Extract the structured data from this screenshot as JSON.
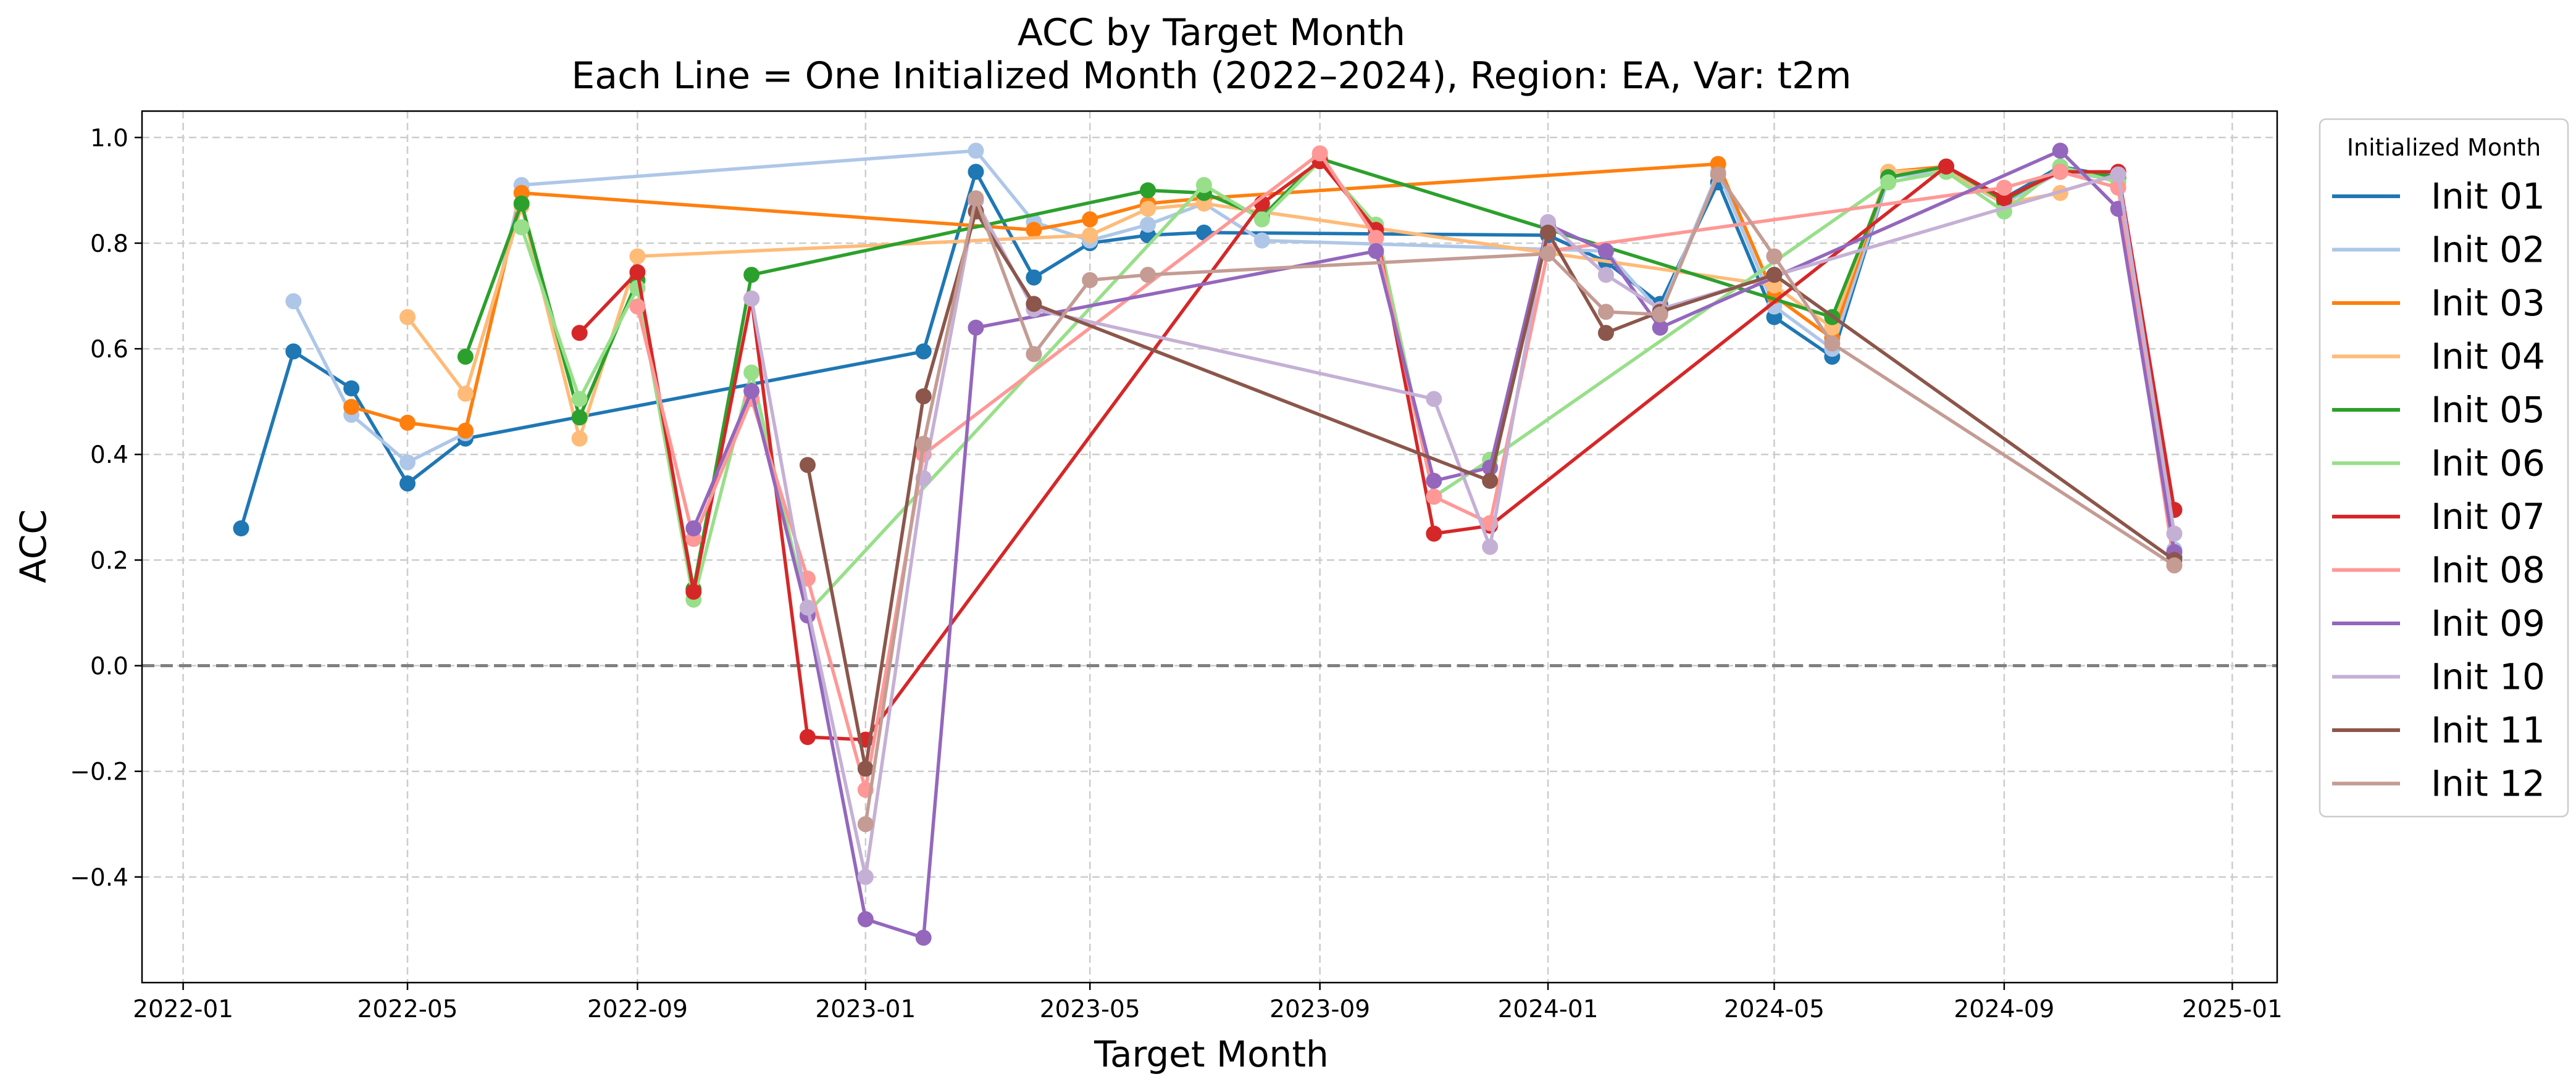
{
  "chart_data": {
    "type": "line",
    "title": "ACC by Target Month",
    "subtitle": "Each Line = One Initialized Month (2022–2024), Region: EA, Var: t2m",
    "xlabel": "Target Month",
    "ylabel": "ACC",
    "xlim": [
      "2021-12-10",
      "2025-01-25"
    ],
    "ylim": [
      -0.6,
      1.05
    ],
    "x_ticks": [
      "2022-01",
      "2022-05",
      "2022-09",
      "2023-01",
      "2023-05",
      "2023-09",
      "2024-01",
      "2024-05",
      "2024-09",
      "2025-01"
    ],
    "y_ticks": [
      -0.4,
      -0.2,
      0.0,
      0.2,
      0.4,
      0.6,
      0.8,
      1.0
    ],
    "y_tick_labels": [
      "−0.4",
      "−0.2",
      "0.0",
      "0.2",
      "0.4",
      "0.6",
      "0.8",
      "1.0"
    ],
    "grid": true,
    "reference_line": 0.0,
    "legend": {
      "title": "Initialized Month",
      "position": "outside-right"
    },
    "series": [
      {
        "name": "Init 01",
        "color": "#1f77b4",
        "points": [
          [
            "2022-02",
            0.26
          ],
          [
            "2022-03",
            0.595
          ],
          [
            "2022-04",
            0.525
          ],
          [
            "2022-05",
            0.345
          ],
          [
            "2022-06",
            0.43
          ],
          [
            "2023-02",
            0.595
          ],
          [
            "2023-03",
            0.935
          ],
          [
            "2023-04",
            0.735
          ],
          [
            "2023-05",
            0.8
          ],
          [
            "2023-06",
            0.815
          ],
          [
            "2023-07",
            0.82
          ],
          [
            "2024-01",
            0.815
          ],
          [
            "2024-02",
            0.765
          ],
          [
            "2024-03",
            0.685
          ],
          [
            "2024-04",
            0.915
          ],
          [
            "2024-05",
            0.66
          ],
          [
            "2024-06",
            0.585
          ],
          [
            "2024-07",
            0.925
          ],
          [
            "2024-08",
            0.945
          ],
          [
            "2024-09",
            0.885
          ],
          [
            "2024-10",
            0.945
          ],
          [
            "2024-11",
            0.925
          ],
          [
            "2024-12",
            0.205
          ]
        ]
      },
      {
        "name": "Init 02",
        "color": "#aec7e8",
        "points": [
          [
            "2022-03",
            0.69
          ],
          [
            "2022-04",
            0.475
          ],
          [
            "2022-05",
            0.385
          ],
          [
            "2022-06",
            0.44
          ],
          [
            "2022-07",
            0.91
          ],
          [
            "2023-03",
            0.975
          ],
          [
            "2023-04",
            0.84
          ],
          [
            "2023-05",
            0.805
          ],
          [
            "2023-06",
            0.835
          ],
          [
            "2023-07",
            0.875
          ],
          [
            "2023-08",
            0.805
          ],
          [
            "2024-02",
            0.785
          ],
          [
            "2024-03",
            0.67
          ],
          [
            "2024-04",
            0.935
          ],
          [
            "2024-05",
            0.68
          ],
          [
            "2024-06",
            0.6
          ],
          [
            "2024-07",
            0.925
          ],
          [
            "2024-08",
            0.935
          ],
          [
            "2024-09",
            0.875
          ],
          [
            "2024-10",
            0.935
          ],
          [
            "2024-11",
            0.92
          ],
          [
            "2024-12",
            0.22
          ]
        ]
      },
      {
        "name": "Init 03",
        "color": "#ff7f0e",
        "points": [
          [
            "2022-04",
            0.49
          ],
          [
            "2022-05",
            0.46
          ],
          [
            "2022-06",
            0.445
          ],
          [
            "2022-07",
            0.895
          ],
          [
            "2023-04",
            0.825
          ],
          [
            "2023-05",
            0.845
          ],
          [
            "2023-06",
            0.875
          ],
          [
            "2023-07",
            0.885
          ],
          [
            "2024-04",
            0.95
          ],
          [
            "2024-05",
            0.7
          ],
          [
            "2024-06",
            0.62
          ],
          [
            "2024-07",
            0.935
          ],
          [
            "2024-08",
            0.945
          ]
        ]
      },
      {
        "name": "Init 04",
        "color": "#ffbb78",
        "points": [
          [
            "2022-05",
            0.66
          ],
          [
            "2022-06",
            0.515
          ],
          [
            "2022-07",
            0.87
          ],
          [
            "2022-08",
            0.43
          ],
          [
            "2022-09",
            0.775
          ],
          [
            "2023-05",
            0.815
          ],
          [
            "2023-06",
            0.865
          ],
          [
            "2023-07",
            0.875
          ],
          [
            "2024-05",
            0.72
          ],
          [
            "2024-06",
            0.64
          ],
          [
            "2024-07",
            0.935
          ],
          [
            "2024-08",
            0.94
          ],
          [
            "2024-09",
            0.875
          ],
          [
            "2024-10",
            0.895
          ]
        ]
      },
      {
        "name": "Init 05",
        "color": "#2ca02c",
        "points": [
          [
            "2022-06",
            0.585
          ],
          [
            "2022-07",
            0.875
          ],
          [
            "2022-08",
            0.47
          ],
          [
            "2022-09",
            0.73
          ],
          [
            "2022-10",
            0.145
          ],
          [
            "2022-11",
            0.74
          ],
          [
            "2023-06",
            0.9
          ],
          [
            "2023-07",
            0.895
          ],
          [
            "2023-08",
            0.85
          ],
          [
            "2023-09",
            0.96
          ],
          [
            "2024-06",
            0.66
          ],
          [
            "2024-07",
            0.925
          ],
          [
            "2024-08",
            0.945
          ],
          [
            "2024-09",
            0.88
          ],
          [
            "2024-10",
            0.94
          ],
          [
            "2024-11",
            0.925
          ]
        ]
      },
      {
        "name": "Init 06",
        "color": "#98df8a",
        "points": [
          [
            "2022-07",
            0.83
          ],
          [
            "2022-08",
            0.505
          ],
          [
            "2022-09",
            0.715
          ],
          [
            "2022-10",
            0.125
          ],
          [
            "2022-11",
            0.555
          ],
          [
            "2022-12",
            0.1
          ],
          [
            "2023-07",
            0.91
          ],
          [
            "2023-08",
            0.845
          ],
          [
            "2023-09",
            0.955
          ],
          [
            "2023-10",
            0.835
          ],
          [
            "2023-11",
            0.32
          ],
          [
            "2023-12",
            0.39
          ],
          [
            "2024-07",
            0.915
          ],
          [
            "2024-08",
            0.935
          ],
          [
            "2024-09",
            0.86
          ],
          [
            "2024-10",
            0.945
          ],
          [
            "2024-11",
            0.915
          ],
          [
            "2024-12",
            0.215
          ]
        ]
      },
      {
        "name": "Init 07",
        "color": "#d62728",
        "points": [
          [
            "2022-08",
            0.63
          ],
          [
            "2022-09",
            0.745
          ],
          [
            "2022-10",
            0.14
          ],
          [
            "2022-11",
            0.695
          ],
          [
            "2022-12",
            -0.135
          ],
          [
            "2023-01",
            -0.14
          ],
          [
            "2023-08",
            0.875
          ],
          [
            "2023-09",
            0.955
          ],
          [
            "2023-10",
            0.825
          ],
          [
            "2023-11",
            0.25
          ],
          [
            "2023-12",
            0.265
          ],
          [
            "2024-08",
            0.945
          ],
          [
            "2024-09",
            0.885
          ],
          [
            "2024-10",
            0.935
          ],
          [
            "2024-11",
            0.935
          ],
          [
            "2024-12",
            0.295
          ]
        ]
      },
      {
        "name": "Init 08",
        "color": "#ff9896",
        "points": [
          [
            "2022-09",
            0.68
          ],
          [
            "2022-10",
            0.24
          ],
          [
            "2022-11",
            0.505
          ],
          [
            "2022-12",
            0.165
          ],
          [
            "2023-01",
            -0.235
          ],
          [
            "2023-02",
            0.4
          ],
          [
            "2023-09",
            0.97
          ],
          [
            "2023-10",
            0.81
          ],
          [
            "2023-11",
            0.32
          ],
          [
            "2023-12",
            0.27
          ],
          [
            "2024-01",
            0.785
          ],
          [
            "2024-09",
            0.905
          ],
          [
            "2024-10",
            0.935
          ],
          [
            "2024-11",
            0.905
          ],
          [
            "2024-12",
            0.19
          ]
        ]
      },
      {
        "name": "Init 09",
        "color": "#9467bd",
        "points": [
          [
            "2022-10",
            0.26
          ],
          [
            "2022-11",
            0.52
          ],
          [
            "2022-12",
            0.095
          ],
          [
            "2023-01",
            -0.48
          ],
          [
            "2023-02",
            -0.515
          ],
          [
            "2023-03",
            0.64
          ],
          [
            "2023-10",
            0.785
          ],
          [
            "2023-11",
            0.35
          ],
          [
            "2023-12",
            0.375
          ],
          [
            "2024-01",
            0.835
          ],
          [
            "2024-02",
            0.785
          ],
          [
            "2024-03",
            0.64
          ],
          [
            "2024-10",
            0.975
          ],
          [
            "2024-11",
            0.865
          ],
          [
            "2024-12",
            0.215
          ]
        ]
      },
      {
        "name": "Init 10",
        "color": "#c5b0d5",
        "points": [
          [
            "2022-11",
            0.695
          ],
          [
            "2022-12",
            0.11
          ],
          [
            "2023-01",
            -0.4
          ],
          [
            "2023-02",
            0.355
          ],
          [
            "2023-03",
            0.88
          ],
          [
            "2023-04",
            0.675
          ],
          [
            "2023-11",
            0.505
          ],
          [
            "2023-12",
            0.225
          ],
          [
            "2024-01",
            0.84
          ],
          [
            "2024-02",
            0.74
          ],
          [
            "2024-03",
            0.675
          ],
          [
            "2024-11",
            0.93
          ],
          [
            "2024-12",
            0.25
          ]
        ]
      },
      {
        "name": "Init 11",
        "color": "#8c564b",
        "points": [
          [
            "2022-12",
            0.38
          ],
          [
            "2023-01",
            -0.195
          ],
          [
            "2023-02",
            0.51
          ],
          [
            "2023-03",
            0.86
          ],
          [
            "2023-04",
            0.685
          ],
          [
            "2023-12",
            0.35
          ],
          [
            "2024-01",
            0.82
          ],
          [
            "2024-02",
            0.63
          ],
          [
            "2024-03",
            0.67
          ],
          [
            "2024-05",
            0.74
          ],
          [
            "2024-12",
            0.2
          ]
        ]
      },
      {
        "name": "Init 12",
        "color": "#c49c94",
        "points": [
          [
            "2023-01",
            -0.3
          ],
          [
            "2023-02",
            0.42
          ],
          [
            "2023-03",
            0.885
          ],
          [
            "2023-04",
            0.59
          ],
          [
            "2023-05",
            0.73
          ],
          [
            "2023-06",
            0.74
          ],
          [
            "2024-01",
            0.78
          ],
          [
            "2024-02",
            0.67
          ],
          [
            "2024-03",
            0.665
          ],
          [
            "2024-04",
            0.93
          ],
          [
            "2024-05",
            0.775
          ],
          [
            "2024-06",
            0.61
          ],
          [
            "2024-12",
            0.19
          ]
        ]
      }
    ]
  }
}
